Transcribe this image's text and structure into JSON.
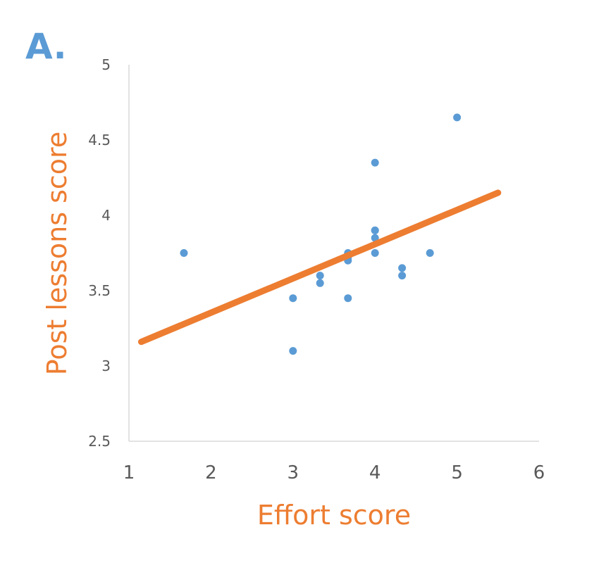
{
  "chart_data": {
    "type": "scatter",
    "panel_label": "A.",
    "xlabel": "Effort score",
    "ylabel": "Post lessons score",
    "xlim": [
      1,
      6
    ],
    "ylim": [
      2.5,
      5
    ],
    "x_ticks": [
      "1",
      "2",
      "3",
      "4",
      "5",
      "6"
    ],
    "y_ticks": [
      "2.5",
      "3",
      "3.5",
      "4",
      "4.5",
      "5"
    ],
    "grid": false,
    "legend": "none",
    "colors": {
      "points": "#5b9bd5",
      "trendline": "#ed7d31",
      "axis_title": "#ed7d31",
      "panel_label": "#5b9bd5",
      "axis_line": "#d9d9d9",
      "tick_text": "#595959"
    },
    "series": [
      {
        "x": [
          1.67,
          3.0,
          3.0,
          3.33,
          3.33,
          3.67,
          3.67,
          3.67,
          3.67,
          4.0,
          4.0,
          4.0,
          4.0,
          4.0,
          4.33,
          4.33,
          4.67,
          5.0
        ],
        "y": [
          3.75,
          3.1,
          3.45,
          3.55,
          3.6,
          3.45,
          3.7,
          3.72,
          3.75,
          3.75,
          3.85,
          3.9,
          3.9,
          4.35,
          3.6,
          3.65,
          3.75,
          4.65
        ]
      }
    ],
    "trendline": {
      "type": "linear",
      "x": [
        1.15,
        5.5
      ],
      "y": [
        3.16,
        4.15
      ]
    }
  }
}
